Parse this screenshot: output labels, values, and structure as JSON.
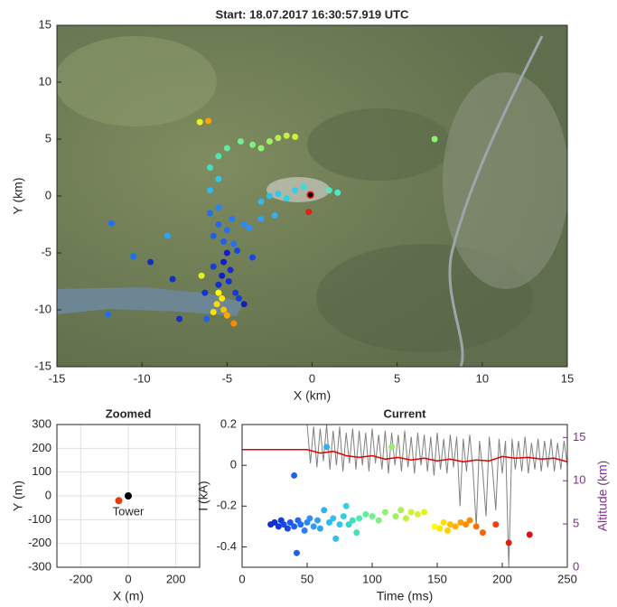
{
  "chart_data": [
    {
      "type": "scatter",
      "title": "Start: 18.07.2017 16:30:57.919 UTC",
      "xlabel": "X (km)",
      "ylabel": "Y (km)",
      "xlim": [
        -15,
        15
      ],
      "ylim": [
        -15,
        15
      ],
      "xticks": [
        -15,
        -10,
        -5,
        0,
        5,
        10,
        15
      ],
      "yticks": [
        -15,
        -10,
        -5,
        0,
        5,
        10,
        15
      ],
      "grid": false,
      "points": {
        "x": [
          -5,
          -5.2,
          -4.8,
          -5.3,
          -4.9,
          -5.5,
          -4.5,
          -4.3,
          -4,
          -5.8,
          -4.4,
          -3.5,
          -6.3,
          -5.5,
          -5,
          -5.8,
          -4.7,
          -4,
          -5.2,
          -6,
          -5.5,
          -4.6,
          -3.7,
          -3,
          -3,
          -2.5,
          -2,
          -1.5,
          -1,
          -0.5,
          -2.2,
          -6,
          -5.5,
          1.5,
          1,
          -6,
          -5.5,
          -5,
          -4.2,
          -3.5,
          -3,
          -2.5,
          -2,
          -1.5,
          -1,
          7.2,
          -6.1,
          -6.6,
          -5.5,
          -5.3,
          -5.6,
          -5.2,
          -5,
          -4.6,
          -5.8,
          -0.2,
          -0.1,
          -12,
          -10.5,
          -9.5,
          -8.5,
          -11.8,
          -7.8,
          -6.5,
          -6.2,
          -8.2
        ],
        "y": [
          -5,
          -5.8,
          -6.5,
          -7,
          -7.5,
          -7.8,
          -8.5,
          -9,
          -9.5,
          -6.2,
          -4.8,
          -5.4,
          -8.5,
          -2.5,
          -3,
          -3.5,
          -2,
          -2.5,
          -4,
          -1.5,
          -1,
          -4.2,
          -2.8,
          -2,
          -0.5,
          0,
          0.2,
          -0.2,
          0.5,
          0.8,
          -1.7,
          0.5,
          1.5,
          0.3,
          0.5,
          2.5,
          3.5,
          4.2,
          4.8,
          4.5,
          4.2,
          4.8,
          5.1,
          5.3,
          5.2,
          5,
          6.6,
          6.5,
          -8.5,
          -9,
          -9.5,
          -10,
          -10.5,
          -11.2,
          -10.2,
          -1.4,
          0.1,
          -10.4,
          -5.3,
          -5.8,
          -3.5,
          -2.4,
          -10.8,
          -7,
          -10.8,
          -7.3
        ],
        "colors": [
          "#1020c0",
          "#1020c0",
          "#1828d0",
          "#1020c0",
          "#1530d0",
          "#1030c8",
          "#1838d8",
          "#1840d8",
          "#1020b0",
          "#1540d8",
          "#1848e0",
          "#1848e0",
          "#1535c8",
          "#2068f0",
          "#2070f0",
          "#2060e8",
          "#2878f5",
          "#2888f5",
          "#2060e8",
          "#2070f0",
          "#3080f5",
          "#2870f0",
          "#3090f5",
          "#30a0f5",
          "#30b8f0",
          "#30c0f0",
          "#30c8f0",
          "#30d0e8",
          "#30d0e8",
          "#40d8e0",
          "#30b0f0",
          "#30b8f0",
          "#30c8e8",
          "#50e8c0",
          "#50e8c0",
          "#40e0c0",
          "#50e8b0",
          "#60eca0",
          "#70f090",
          "#80f080",
          "#90f070",
          "#a0f060",
          "#b0f050",
          "#c0f040",
          "#d0f030",
          "#90f070",
          "#ffa000",
          "#e8f020",
          "#ffff00",
          "#ffe800",
          "#ffd800",
          "#ffc000",
          "#ffa800",
          "#ff8800",
          "#ffe000",
          "#e02010",
          "#000000",
          "#1f70f0",
          "#1f70f0",
          "#1030c0",
          "#30a0f5",
          "#2070f0",
          "#1030c8",
          "#e0f020",
          "#2060f0",
          "#1030c0"
        ]
      }
    },
    {
      "type": "scatter",
      "title": "Zoomed",
      "xlabel": "X (m)",
      "ylabel": "Y (m)",
      "xlim": [
        -300,
        300
      ],
      "ylim": [
        -300,
        300
      ],
      "xticks": [
        -200,
        0,
        200
      ],
      "yticks": [
        -300,
        -200,
        -100,
        0,
        100,
        200,
        300
      ],
      "grid": true,
      "annotation": "Tower",
      "points": {
        "x": [
          0,
          -40
        ],
        "y": [
          0,
          -20
        ],
        "colors": [
          "#000000",
          "#e04010"
        ]
      }
    },
    {
      "type": "line",
      "title": "Current",
      "xlabel": "Time (ms)",
      "ylabel": "I (kA)",
      "y2label": "Altitude (km)",
      "y2color": "#7e2f8e",
      "xlim": [
        0,
        250
      ],
      "ylim": [
        -0.5,
        0.2
      ],
      "y2lim": [
        0,
        16.5
      ],
      "xticks": [
        0,
        50,
        100,
        150,
        200,
        250
      ],
      "yticks": [
        -0.4,
        -0.2,
        0,
        0.2
      ],
      "y2ticks": [
        0,
        5,
        10,
        15
      ],
      "grid": false,
      "series": [
        {
          "color": "#808080",
          "x": [
            50,
            52.5,
            55,
            57.5,
            60,
            62.5,
            65,
            67.5,
            70,
            72.5,
            75,
            77.5,
            80,
            82.5,
            85,
            87.5,
            90,
            92.5,
            95,
            97.5,
            100,
            102.5,
            105,
            107.5,
            110,
            112.5,
            115,
            117.5,
            120,
            122.5,
            125,
            127.5,
            130,
            132.5,
            135,
            137.5,
            140,
            142.5,
            145,
            147.5,
            150,
            152.5,
            155,
            157.5,
            160,
            162.5,
            165,
            167.5,
            170,
            172.5,
            175,
            177.5,
            180,
            182.5,
            185,
            187.5,
            190,
            192.5,
            195,
            197.5,
            200,
            202.5,
            205,
            207.5,
            210,
            212.5,
            215,
            217.5,
            220,
            222.5,
            225,
            227.5,
            230,
            232.5,
            235,
            237.5,
            240,
            242.5,
            245,
            247.5,
            250
          ],
          "values": [
            0.2,
            0.01,
            0.19,
            -0.01,
            0.18,
            0.02,
            0.2,
            -0.02,
            0.17,
            0.0,
            0.19,
            -0.03,
            0.16,
            0.01,
            0.18,
            -0.02,
            0.17,
            0.0,
            0.16,
            -0.03,
            0.18,
            0.01,
            0.15,
            -0.02,
            0.17,
            -0.04,
            0.16,
            0.0,
            0.15,
            -0.03,
            0.17,
            -0.01,
            0.14,
            -0.04,
            0.16,
            0.0,
            0.15,
            -0.03,
            0.14,
            -0.05,
            0.16,
            -0.02,
            0.13,
            -0.04,
            0.15,
            -0.01,
            0.14,
            -0.2,
            0.13,
            -0.03,
            0.15,
            -0.02,
            -0.3,
            0.12,
            -0.03,
            -0.25,
            0.14,
            -0.02,
            -0.22,
            0.13,
            -0.04,
            0.12,
            -0.5,
            0.13,
            -0.02,
            0.12,
            -0.03,
            0.14,
            -0.04,
            0.11,
            -0.02,
            0.13,
            -0.03,
            0.12,
            -0.01,
            0.13,
            -0.03,
            0.11,
            -0.02,
            0.12,
            0.0
          ]
        },
        {
          "color": "#e00000",
          "axis": "y2",
          "x": [
            0,
            50,
            60,
            70,
            80,
            90,
            100,
            110,
            120,
            130,
            140,
            150,
            160,
            170,
            180,
            190,
            200,
            210,
            220,
            230,
            240,
            250
          ],
          "values": [
            13.6,
            13.6,
            13.2,
            13.4,
            12.9,
            12.7,
            12.9,
            12.5,
            12.7,
            12.4,
            12.6,
            12.3,
            12.5,
            12.2,
            12.4,
            12.3,
            12.8,
            12.6,
            12.7,
            12.5,
            12.6,
            12.2
          ]
        }
      ],
      "points": {
        "x": [
          22,
          25,
          28,
          30,
          32,
          35,
          37,
          40,
          40,
          42,
          43,
          45,
          48,
          50,
          52,
          55,
          58,
          60,
          63,
          65,
          67,
          70,
          72,
          75,
          78,
          80,
          82,
          85,
          88,
          90,
          95,
          100,
          105,
          110,
          115,
          118,
          122,
          126,
          130,
          135,
          140,
          148,
          152,
          155,
          158,
          160,
          164,
          168,
          172,
          175,
          180,
          185,
          195,
          205,
          221
        ],
        "y": [
          -0.29,
          -0.28,
          -0.3,
          -0.27,
          -0.29,
          -0.31,
          -0.28,
          -0.05,
          -0.3,
          -0.43,
          -0.27,
          -0.29,
          -0.32,
          -0.28,
          -0.26,
          -0.3,
          -0.27,
          -0.31,
          -0.22,
          0.09,
          -0.28,
          -0.26,
          -0.36,
          -0.29,
          -0.25,
          -0.2,
          -0.29,
          -0.27,
          -0.33,
          -0.26,
          -0.24,
          -0.25,
          -0.27,
          -0.23,
          0.09,
          -0.25,
          -0.22,
          -0.26,
          -0.23,
          -0.24,
          -0.23,
          -0.3,
          -0.31,
          -0.28,
          -0.32,
          -0.29,
          -0.3,
          -0.28,
          -0.29,
          -0.27,
          -0.3,
          -0.33,
          -0.29,
          -0.38,
          -0.34
        ],
        "colors": [
          "#1030d0",
          "#1030d0",
          "#1535e0",
          "#1040d8",
          "#1848e8",
          "#1848e8",
          "#1f55f0",
          "#2060f0",
          "#2060f0",
          "#2060f0",
          "#2068f0",
          "#2070f5",
          "#2a80f5",
          "#2a88f5",
          "#3090f5",
          "#3098f5",
          "#30a0f0",
          "#30a8f0",
          "#30b0f0",
          "#30b0f0",
          "#30b8f0",
          "#30c0f0",
          "#30c0f0",
          "#30c8e8",
          "#30d0e0",
          "#30d0e0",
          "#30d8d0",
          "#40e0c0",
          "#40e0c0",
          "#50e8b0",
          "#60eca0",
          "#70f090",
          "#80f080",
          "#90f070",
          "#90f070",
          "#a0f060",
          "#b0f050",
          "#c0f040",
          "#c8f040",
          "#d8f030",
          "#e0f020",
          "#ffff00",
          "#ffe800",
          "#ffe000",
          "#ffd000",
          "#ffc000",
          "#ffb000",
          "#ffa000",
          "#ff9000",
          "#ff8800",
          "#ff7000",
          "#ff6000",
          "#f04010",
          "#e02010",
          "#e01010"
        ]
      }
    }
  ]
}
